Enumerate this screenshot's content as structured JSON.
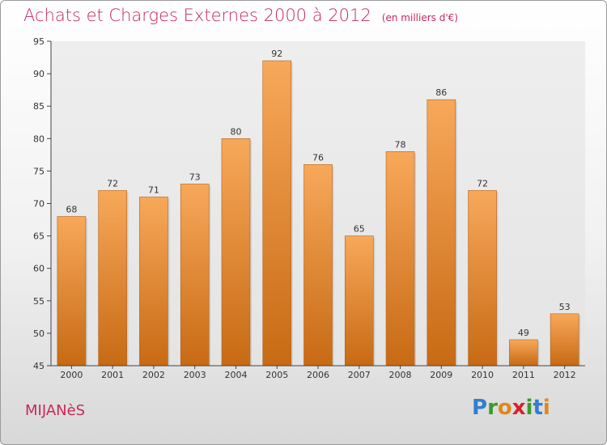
{
  "title": "Achats et Charges Externes 2000 à 2012",
  "unit": "(en milliers d'€)",
  "place": "MIJANèS",
  "brand": {
    "letters": [
      "P",
      "r",
      "o",
      "x",
      "i",
      "t",
      "i"
    ],
    "colors": [
      "#2f7fd0",
      "#3a9a2a",
      "#e0881a",
      "#d8202a",
      "#3a9a2a",
      "#2f7fd0",
      "#e0881a"
    ]
  },
  "colors": {
    "title": "#c8285a",
    "bar_top": "#f8a85a",
    "bar_bottom": "#c76a14",
    "bar_edge": "#b4601a"
  },
  "chart_data": {
    "type": "bar",
    "categories": [
      "2000",
      "2001",
      "2002",
      "2003",
      "2004",
      "2005",
      "2006",
      "2007",
      "2008",
      "2009",
      "2010",
      "2011",
      "2012"
    ],
    "values": [
      68,
      72,
      71,
      73,
      80,
      92,
      76,
      65,
      78,
      86,
      72,
      49,
      53
    ],
    "title": "Achats et Charges Externes 2000 à 2012",
    "ylim": [
      45,
      95
    ],
    "yticks": [
      45,
      50,
      55,
      60,
      65,
      70,
      75,
      80,
      85,
      90,
      95
    ],
    "grid": false,
    "data_labels": true
  }
}
